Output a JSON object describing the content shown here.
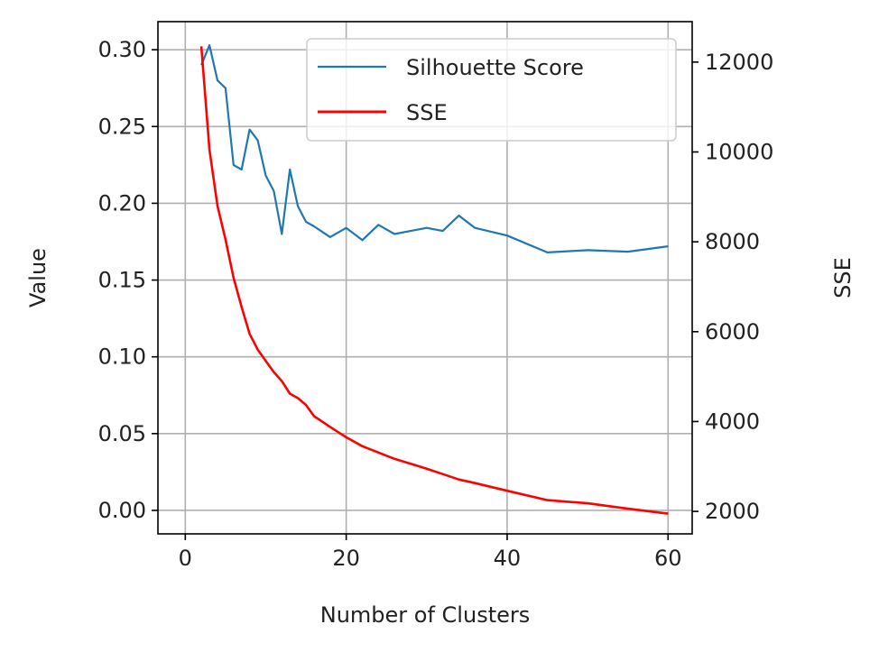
{
  "chart_data": {
    "type": "line",
    "xlabel": "Number of Clusters",
    "ylabel": "Value",
    "y2label": "SSE",
    "xlim": [
      -3.4,
      63
    ],
    "ylim": [
      -0.0153,
      0.3183
    ],
    "y2lim": [
      1500,
      12900
    ],
    "xticks": [
      0,
      20,
      40,
      60
    ],
    "yticks": [
      0.0,
      0.05,
      0.1,
      0.15,
      0.2,
      0.25,
      0.3
    ],
    "y2ticks": [
      2000,
      4000,
      6000,
      8000,
      10000,
      12000
    ],
    "grid": true,
    "legend_position": "top-right",
    "series": [
      {
        "name": "Silhouette Score",
        "axis": "left",
        "color": "#1f77b4",
        "x": [
          2,
          3,
          4,
          5,
          6,
          7,
          8,
          9,
          10,
          11,
          12,
          13,
          14,
          15,
          16,
          18,
          20,
          22,
          24,
          26,
          28,
          30,
          32,
          34,
          36,
          40,
          45,
          50,
          55,
          60
        ],
        "values": [
          0.29,
          0.303,
          0.28,
          0.275,
          0.225,
          0.222,
          0.248,
          0.241,
          0.218,
          0.208,
          0.18,
          0.222,
          0.198,
          0.188,
          0.185,
          0.178,
          0.184,
          0.176,
          0.186,
          0.18,
          0.182,
          0.184,
          0.182,
          0.192,
          0.184,
          0.179,
          0.168,
          0.1695,
          0.1685,
          0.172
        ]
      },
      {
        "name": "SSE",
        "axis": "right",
        "color": "#ff0000",
        "x": [
          2,
          3,
          4,
          5,
          6,
          7,
          8,
          9,
          10,
          11,
          12,
          13,
          14,
          15,
          16,
          18,
          20,
          22,
          24,
          26,
          28,
          30,
          32,
          34,
          36,
          40,
          45,
          50,
          55,
          60
        ],
        "values": [
          12350,
          10050,
          8800,
          8050,
          7200,
          6550,
          5950,
          5600,
          5350,
          5100,
          4900,
          4620,
          4520,
          4370,
          4120,
          3880,
          3650,
          3450,
          3310,
          3170,
          3060,
          2950,
          2830,
          2710,
          2630,
          2460,
          2250,
          2180,
          2060,
          1950
        ]
      }
    ]
  }
}
